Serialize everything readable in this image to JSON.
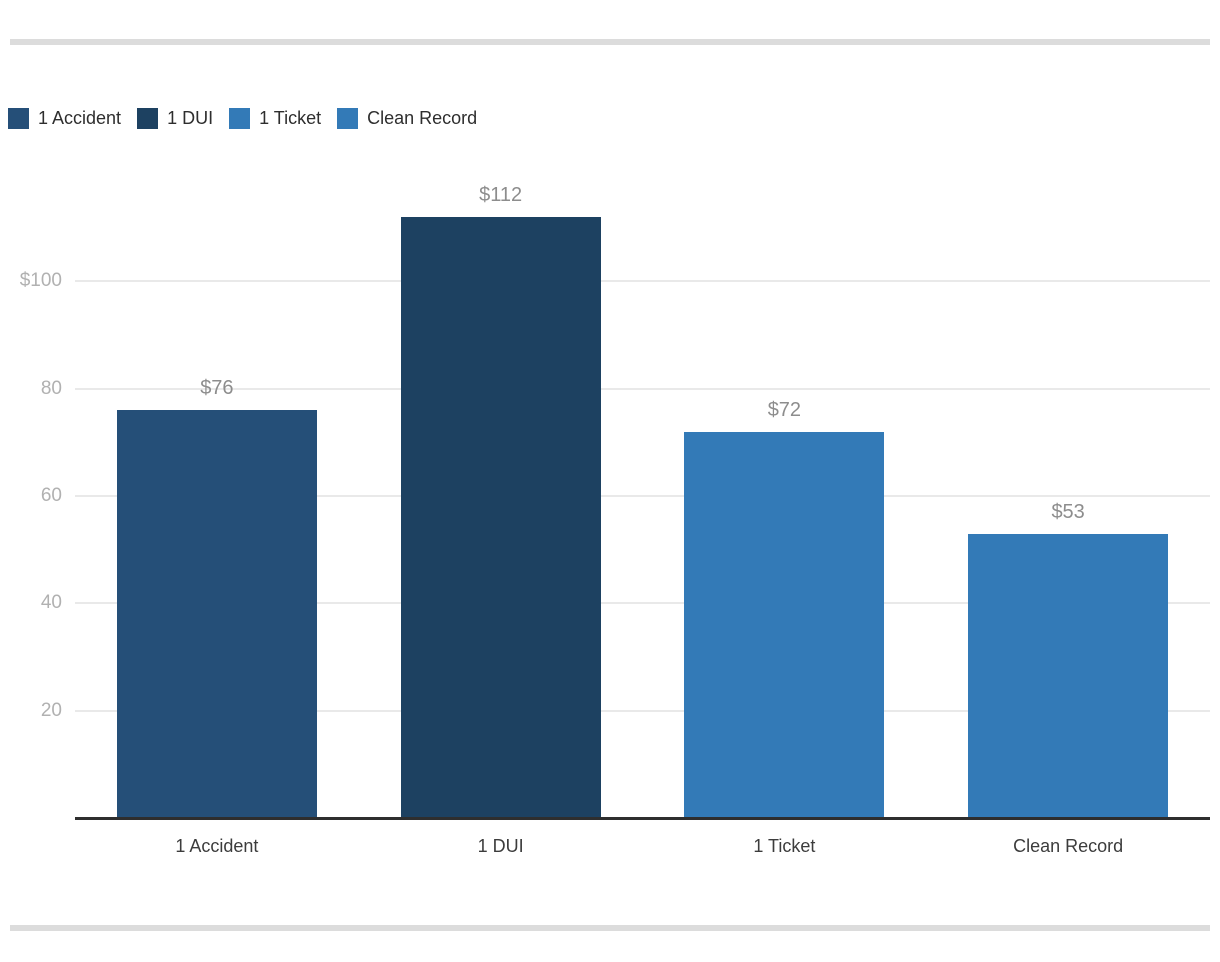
{
  "chart_data": {
    "type": "bar",
    "categories": [
      "1 Accident",
      "1 DUI",
      "1 Ticket",
      "Clean Record"
    ],
    "values": [
      76,
      112,
      72,
      53
    ],
    "value_labels": [
      "$76",
      "$112",
      "$72",
      "$53"
    ],
    "bar_colors": [
      "#254f78",
      "#1d4161",
      "#337ab7",
      "#337ab7"
    ],
    "legend": [
      {
        "label": "1 Accident",
        "color": "#254f78"
      },
      {
        "label": "1 DUI",
        "color": "#1d4161"
      },
      {
        "label": "1 Ticket",
        "color": "#337ab7"
      },
      {
        "label": "Clean Record",
        "color": "#337ab7"
      }
    ],
    "legend_position": "top-left",
    "y_axis": {
      "max": 120,
      "ticks": [
        {
          "label": "$100",
          "value": 100
        },
        {
          "label": "80",
          "value": 80
        },
        {
          "label": "60",
          "value": 60
        },
        {
          "label": "40",
          "value": 40
        },
        {
          "label": "20",
          "value": 20
        }
      ]
    },
    "grid": true,
    "title": "",
    "xlabel": "",
    "ylabel": ""
  },
  "page": {
    "background": "#ffffff",
    "divider_color": "#dcdcdc",
    "gridline_color": "#e9e9e9",
    "axis_line_color": "#2e2e2e",
    "y_tick_color": "#b1b1b1",
    "value_label_color": "#8d8d8d",
    "x_label_color": "#3c3c3c"
  }
}
